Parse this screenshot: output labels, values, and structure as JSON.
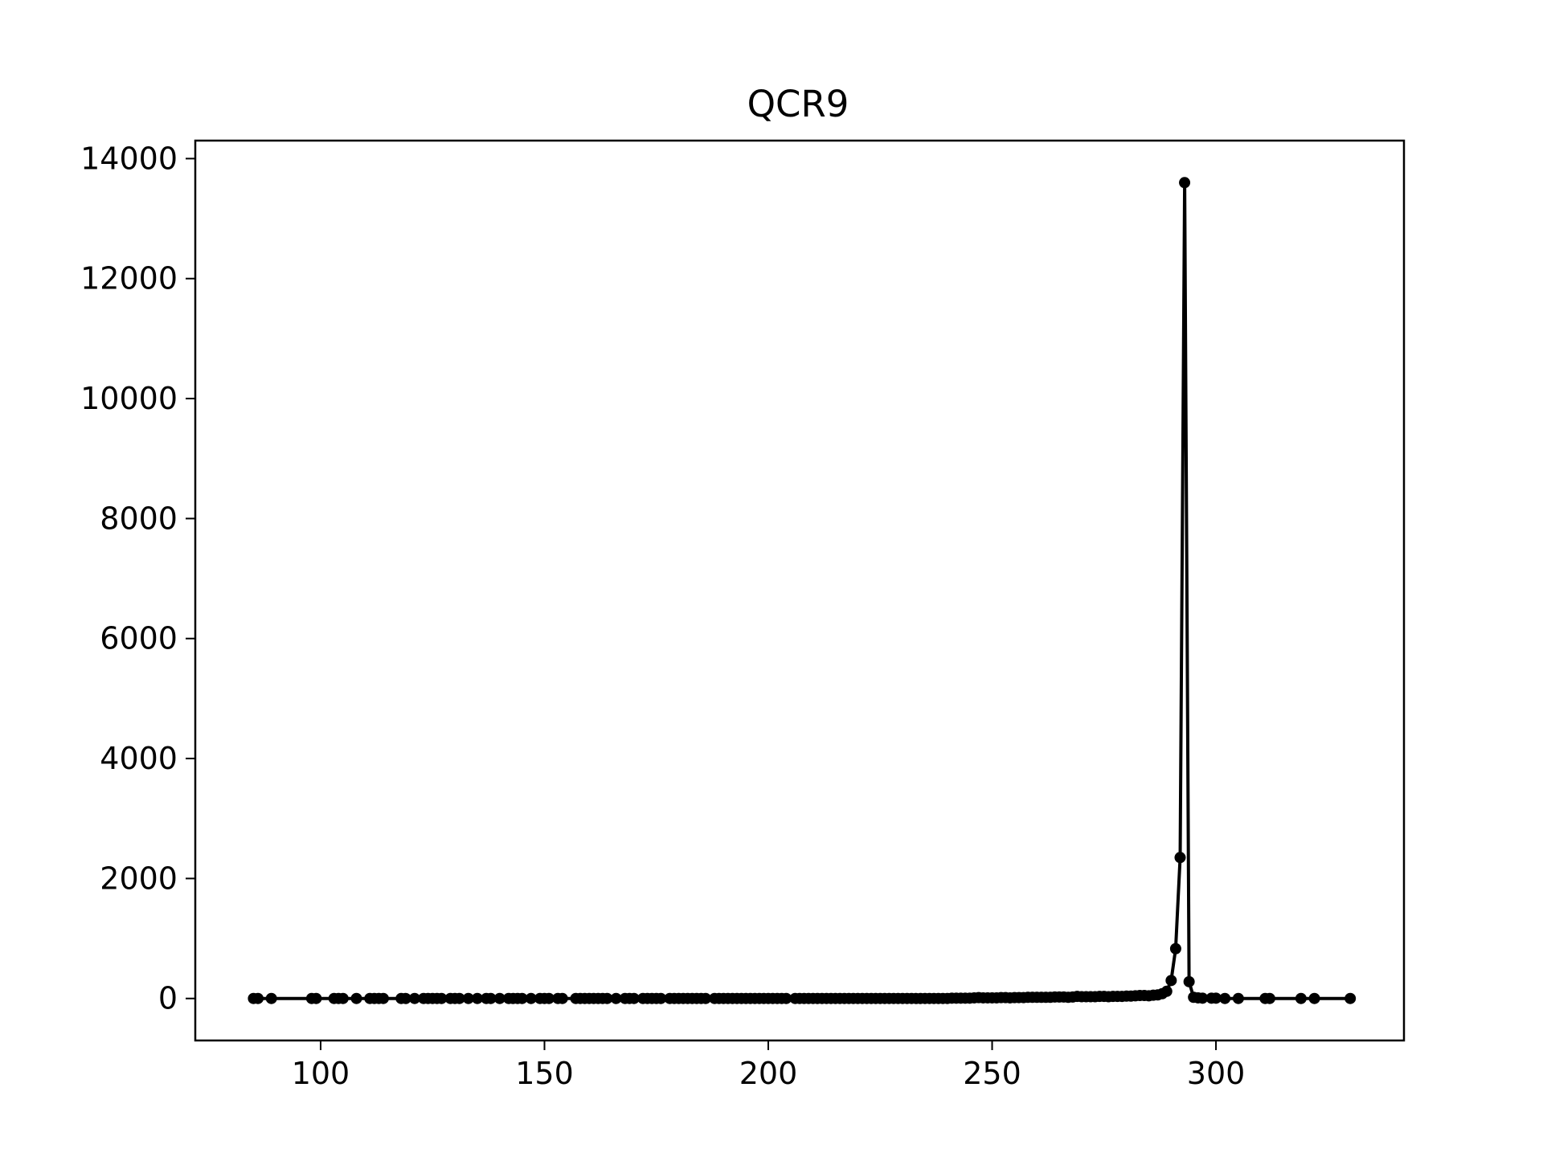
{
  "chart_data": {
    "type": "line",
    "title": "QCR9",
    "xlabel": "",
    "ylabel": "",
    "xlim": [
      72,
      342
    ],
    "ylim": [
      -700,
      14300
    ],
    "xticks": [
      100,
      150,
      200,
      250,
      300
    ],
    "yticks": [
      0,
      2000,
      4000,
      6000,
      8000,
      10000,
      12000,
      14000
    ],
    "grid": false,
    "legend": "none",
    "marker": "circle",
    "line_color": "#000000",
    "series": [
      {
        "x": [
          85,
          86,
          89,
          98,
          99,
          103,
          104,
          105,
          108,
          111,
          112,
          113,
          114,
          118,
          119,
          121,
          123,
          124,
          125,
          126,
          127,
          129,
          130,
          131,
          133,
          135,
          137,
          138,
          140,
          142,
          143,
          144,
          145,
          147,
          149,
          150,
          151,
          153,
          154,
          157,
          158,
          159,
          160,
          161,
          162,
          163,
          164,
          166,
          168,
          169,
          170,
          172,
          173,
          174,
          175,
          176,
          178,
          179,
          180,
          181,
          182,
          183,
          184,
          185,
          186,
          188,
          189,
          190,
          191,
          192,
          193,
          194,
          195,
          196,
          197,
          198,
          199,
          200,
          201,
          202,
          203,
          204,
          206,
          207,
          208,
          209,
          210,
          211,
          212,
          213,
          214,
          215,
          216,
          217,
          218,
          219,
          220,
          221,
          222,
          223,
          224,
          225,
          226,
          227,
          228,
          229,
          230,
          231,
          232,
          233,
          234,
          235,
          236,
          237,
          238,
          239,
          240,
          241,
          242,
          243,
          244,
          245,
          246,
          247,
          248,
          249,
          250,
          251,
          252,
          253,
          254,
          255,
          256,
          257,
          258,
          259,
          260,
          261,
          262,
          263,
          264,
          265,
          266,
          267,
          268,
          269,
          270,
          271,
          272,
          273,
          274,
          275,
          276,
          277,
          278,
          279,
          280,
          281,
          282,
          283,
          284,
          285,
          286,
          287,
          288,
          289,
          290,
          291,
          292,
          293,
          294,
          295,
          296,
          297,
          299,
          300,
          302,
          305,
          311,
          312,
          319,
          322,
          330
        ],
        "y": [
          0,
          0,
          0,
          0,
          0,
          0,
          0,
          0,
          0,
          0,
          0,
          0,
          0,
          0,
          0,
          0,
          0,
          0,
          0,
          0,
          0,
          0,
          0,
          0,
          0,
          0,
          0,
          0,
          0,
          0,
          0,
          0,
          0,
          0,
          0,
          0,
          0,
          0,
          0,
          0,
          0,
          0,
          0,
          0,
          0,
          0,
          0,
          0,
          0,
          0,
          0,
          0,
          0,
          0,
          0,
          0,
          0,
          0,
          0,
          0,
          0,
          0,
          0,
          0,
          0,
          0,
          0,
          0,
          0,
          0,
          0,
          0,
          0,
          0,
          0,
          0,
          0,
          0,
          0,
          0,
          0,
          0,
          0,
          0,
          0,
          0,
          0,
          0,
          0,
          0,
          0,
          0,
          0,
          0,
          0,
          0,
          0,
          0,
          0,
          0,
          0,
          0,
          0,
          0,
          0,
          0,
          0,
          0,
          0,
          0,
          0,
          0,
          0,
          0,
          0,
          0,
          0,
          5,
          5,
          5,
          5,
          5,
          10,
          15,
          10,
          10,
          10,
          10,
          15,
          15,
          10,
          15,
          15,
          15,
          20,
          20,
          20,
          20,
          20,
          20,
          25,
          25,
          25,
          20,
          25,
          35,
          30,
          30,
          30,
          30,
          35,
          35,
          30,
          35,
          35,
          35,
          40,
          40,
          45,
          50,
          50,
          45,
          55,
          60,
          80,
          120,
          300,
          830,
          2350,
          13600,
          280,
          20,
          10,
          5,
          5,
          5,
          0,
          0,
          0,
          0,
          0,
          0,
          0
        ]
      }
    ]
  }
}
